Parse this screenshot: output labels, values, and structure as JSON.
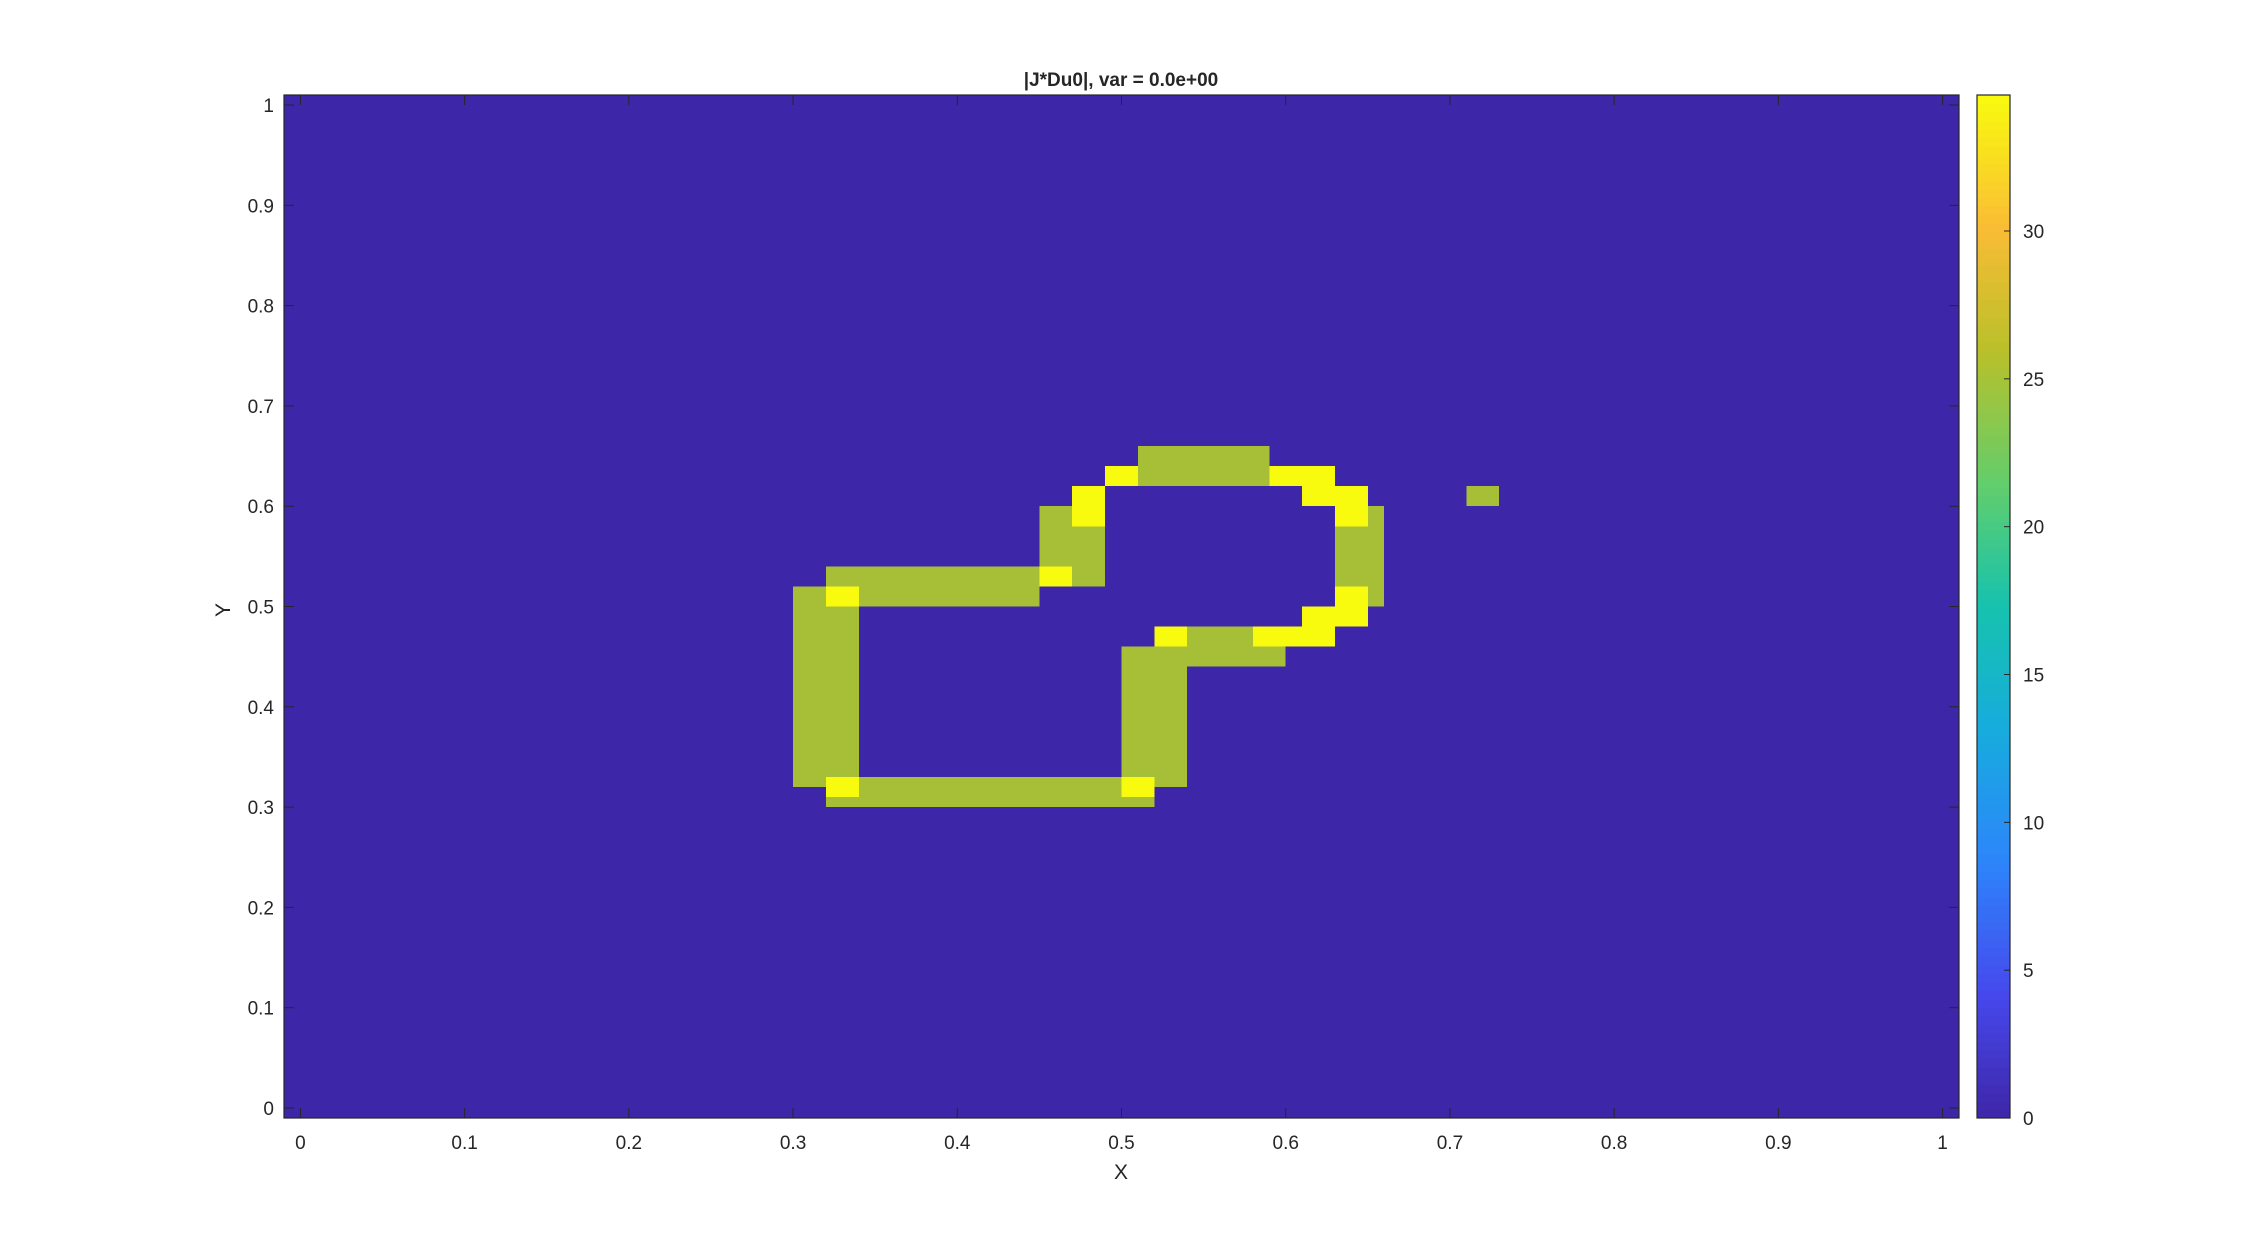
{
  "chart_data": {
    "type": "heatmap",
    "title": "|J*Du0|, var = 0.0e+00",
    "xlabel": "X",
    "ylabel": "Y",
    "xlim": [
      -0.01,
      1.01
    ],
    "ylim": [
      -0.01,
      1.01
    ],
    "x_ticks": [
      0,
      0.1,
      0.2,
      0.3,
      0.4,
      0.5,
      0.6,
      0.7,
      0.8,
      0.9,
      1
    ],
    "x_tick_labels": [
      "0",
      "0.1",
      "0.2",
      "0.3",
      "0.4",
      "0.5",
      "0.6",
      "0.7",
      "0.8",
      "0.9",
      "1"
    ],
    "y_ticks": [
      0,
      0.1,
      0.2,
      0.3,
      0.4,
      0.5,
      0.6,
      0.7,
      0.8,
      0.9,
      1
    ],
    "y_tick_labels": [
      "0",
      "0.1",
      "0.2",
      "0.3",
      "0.4",
      "0.5",
      "0.6",
      "0.7",
      "0.8",
      "0.9",
      "1"
    ],
    "colorbar": {
      "range": [
        0,
        34.6
      ],
      "ticks": [
        0,
        5,
        10,
        15,
        20,
        25,
        30
      ],
      "tick_labels": [
        "0",
        "5",
        "10",
        "15",
        "20",
        "25",
        "30"
      ],
      "colormap": "parula"
    },
    "background_value": 0,
    "cell_size": 0.02,
    "cells": [
      {
        "x": [
          0.51,
          0.59
        ],
        "y": [
          0.62,
          0.66
        ],
        "v": 24.5
      },
      {
        "x": [
          0.71,
          0.73
        ],
        "y": [
          0.6,
          0.62
        ],
        "v": 24.5
      },
      {
        "x": [
          0.45,
          0.47
        ],
        "y": [
          0.52,
          0.6
        ],
        "v": 24.5
      },
      {
        "x": [
          0.47,
          0.49
        ],
        "y": [
          0.52,
          0.58
        ],
        "v": 24.5
      },
      {
        "x": [
          0.32,
          0.45
        ],
        "y": [
          0.5,
          0.54
        ],
        "v": 24.5
      },
      {
        "x": [
          0.3,
          0.32
        ],
        "y": [
          0.32,
          0.52
        ],
        "v": 24.5
      },
      {
        "x": [
          0.32,
          0.34
        ],
        "y": [
          0.33,
          0.5
        ],
        "v": 24.5
      },
      {
        "x": [
          0.32,
          0.52
        ],
        "y": [
          0.3,
          0.33
        ],
        "v": 24.5
      },
      {
        "x": [
          0.5,
          0.54
        ],
        "y": [
          0.32,
          0.46
        ],
        "v": 24.5
      },
      {
        "x": [
          0.52,
          0.6
        ],
        "y": [
          0.44,
          0.48
        ],
        "v": 24.5
      },
      {
        "x": [
          0.63,
          0.66
        ],
        "y": [
          0.5,
          0.6
        ],
        "v": 24.5
      },
      {
        "x": [
          0.65,
          0.66
        ],
        "y": [
          0.5,
          0.6
        ],
        "v": 24.5
      },
      {
        "x": [
          0.63,
          0.65
        ],
        "y": [
          0.58,
          0.6
        ],
        "v": 24.5
      },
      {
        "x": [
          0.49,
          0.51
        ],
        "y": [
          0.62,
          0.64
        ],
        "v": 34.6
      },
      {
        "x": [
          0.47,
          0.49
        ],
        "y": [
          0.58,
          0.62
        ],
        "v": 34.6
      },
      {
        "x": [
          0.45,
          0.47
        ],
        "y": [
          0.52,
          0.54
        ],
        "v": 34.6
      },
      {
        "x": [
          0.32,
          0.34
        ],
        "y": [
          0.5,
          0.52
        ],
        "v": 34.6
      },
      {
        "x": [
          0.32,
          0.34
        ],
        "y": [
          0.31,
          0.33
        ],
        "v": 34.6
      },
      {
        "x": [
          0.5,
          0.52
        ],
        "y": [
          0.31,
          0.33
        ],
        "v": 34.6
      },
      {
        "x": [
          0.52,
          0.54
        ],
        "y": [
          0.46,
          0.48
        ],
        "v": 34.6
      },
      {
        "x": [
          0.59,
          0.63
        ],
        "y": [
          0.62,
          0.64
        ],
        "v": 34.6
      },
      {
        "x": [
          0.61,
          0.65
        ],
        "y": [
          0.6,
          0.62
        ],
        "v": 34.6
      },
      {
        "x": [
          0.63,
          0.65
        ],
        "y": [
          0.58,
          0.6
        ],
        "v": 34.6
      },
      {
        "x": [
          0.63,
          0.65
        ],
        "y": [
          0.48,
          0.52
        ],
        "v": 34.6
      },
      {
        "x": [
          0.61,
          0.63
        ],
        "y": [
          0.46,
          0.5
        ],
        "v": 34.6
      },
      {
        "x": [
          0.58,
          0.61
        ],
        "y": [
          0.46,
          0.48
        ],
        "v": 34.6
      }
    ]
  }
}
